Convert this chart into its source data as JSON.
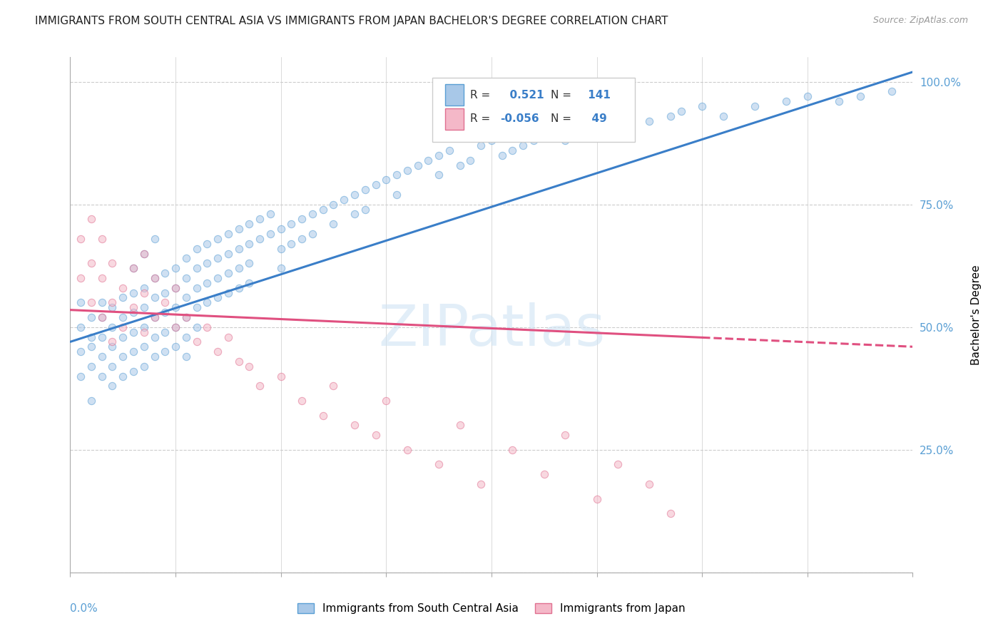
{
  "title": "IMMIGRANTS FROM SOUTH CENTRAL ASIA VS IMMIGRANTS FROM JAPAN BACHELOR'S DEGREE CORRELATION CHART",
  "source_text": "Source: ZipAtlas.com",
  "xmin": 0.0,
  "xmax": 0.8,
  "ymin": 0.0,
  "ymax": 1.05,
  "blue_color": "#a8c8e8",
  "blue_edge": "#5a9fd4",
  "pink_color": "#f4b8c8",
  "pink_edge": "#e07090",
  "trend_blue": "#3a7ec8",
  "trend_pink": "#e05080",
  "R_blue": 0.521,
  "N_blue": 141,
  "R_pink": -0.056,
  "N_pink": 49,
  "watermark": "ZIPatlas",
  "legend_label_blue": "Immigrants from South Central Asia",
  "legend_label_pink": "Immigrants from Japan",
  "blue_trend_x0": 0.0,
  "blue_trend_y0": 0.47,
  "blue_trend_x1": 0.8,
  "blue_trend_y1": 1.02,
  "pink_trend_x0": 0.0,
  "pink_trend_y0": 0.535,
  "pink_trend_x1": 0.8,
  "pink_trend_y1": 0.46,
  "background_color": "#ffffff",
  "grid_color": "#cccccc",
  "dot_size": 55,
  "dot_alpha": 0.55,
  "blue_scatter_x": [
    0.01,
    0.01,
    0.01,
    0.01,
    0.02,
    0.02,
    0.02,
    0.02,
    0.02,
    0.03,
    0.03,
    0.03,
    0.03,
    0.03,
    0.04,
    0.04,
    0.04,
    0.04,
    0.04,
    0.05,
    0.05,
    0.05,
    0.05,
    0.05,
    0.06,
    0.06,
    0.06,
    0.06,
    0.06,
    0.06,
    0.07,
    0.07,
    0.07,
    0.07,
    0.07,
    0.07,
    0.08,
    0.08,
    0.08,
    0.08,
    0.08,
    0.08,
    0.09,
    0.09,
    0.09,
    0.09,
    0.09,
    0.1,
    0.1,
    0.1,
    0.1,
    0.1,
    0.11,
    0.11,
    0.11,
    0.11,
    0.11,
    0.11,
    0.12,
    0.12,
    0.12,
    0.12,
    0.12,
    0.13,
    0.13,
    0.13,
    0.13,
    0.14,
    0.14,
    0.14,
    0.14,
    0.15,
    0.15,
    0.15,
    0.15,
    0.16,
    0.16,
    0.16,
    0.16,
    0.17,
    0.17,
    0.17,
    0.17,
    0.18,
    0.18,
    0.19,
    0.19,
    0.2,
    0.2,
    0.2,
    0.21,
    0.21,
    0.22,
    0.22,
    0.23,
    0.23,
    0.24,
    0.25,
    0.25,
    0.26,
    0.27,
    0.27,
    0.28,
    0.28,
    0.29,
    0.3,
    0.31,
    0.31,
    0.32,
    0.33,
    0.34,
    0.35,
    0.35,
    0.36,
    0.37,
    0.38,
    0.39,
    0.4,
    0.41,
    0.42,
    0.43,
    0.44,
    0.45,
    0.46,
    0.47,
    0.48,
    0.49,
    0.5,
    0.52,
    0.53,
    0.55,
    0.57,
    0.58,
    0.6,
    0.62,
    0.65,
    0.68,
    0.7,
    0.73,
    0.75,
    0.78
  ],
  "blue_scatter_y": [
    0.45,
    0.5,
    0.55,
    0.4,
    0.48,
    0.52,
    0.46,
    0.42,
    0.35,
    0.52,
    0.48,
    0.55,
    0.44,
    0.4,
    0.5,
    0.54,
    0.46,
    0.42,
    0.38,
    0.52,
    0.56,
    0.48,
    0.44,
    0.4,
    0.53,
    0.57,
    0.49,
    0.45,
    0.41,
    0.62,
    0.54,
    0.58,
    0.5,
    0.46,
    0.42,
    0.65,
    0.56,
    0.6,
    0.52,
    0.48,
    0.44,
    0.68,
    0.57,
    0.61,
    0.53,
    0.49,
    0.45,
    0.58,
    0.62,
    0.54,
    0.5,
    0.46,
    0.6,
    0.64,
    0.56,
    0.52,
    0.48,
    0.44,
    0.62,
    0.66,
    0.58,
    0.54,
    0.5,
    0.63,
    0.67,
    0.59,
    0.55,
    0.64,
    0.68,
    0.6,
    0.56,
    0.65,
    0.69,
    0.61,
    0.57,
    0.66,
    0.7,
    0.62,
    0.58,
    0.67,
    0.71,
    0.63,
    0.59,
    0.68,
    0.72,
    0.69,
    0.73,
    0.7,
    0.66,
    0.62,
    0.71,
    0.67,
    0.72,
    0.68,
    0.73,
    0.69,
    0.74,
    0.75,
    0.71,
    0.76,
    0.77,
    0.73,
    0.78,
    0.74,
    0.79,
    0.8,
    0.81,
    0.77,
    0.82,
    0.83,
    0.84,
    0.85,
    0.81,
    0.86,
    0.83,
    0.84,
    0.87,
    0.88,
    0.85,
    0.86,
    0.87,
    0.88,
    0.89,
    0.9,
    0.88,
    0.89,
    0.9,
    0.91,
    0.92,
    0.9,
    0.92,
    0.93,
    0.94,
    0.95,
    0.93,
    0.95,
    0.96,
    0.97,
    0.96,
    0.97,
    0.98
  ],
  "pink_scatter_x": [
    0.01,
    0.01,
    0.02,
    0.02,
    0.02,
    0.03,
    0.03,
    0.03,
    0.04,
    0.04,
    0.04,
    0.05,
    0.05,
    0.06,
    0.06,
    0.07,
    0.07,
    0.07,
    0.08,
    0.08,
    0.09,
    0.1,
    0.1,
    0.11,
    0.12,
    0.13,
    0.14,
    0.15,
    0.16,
    0.17,
    0.18,
    0.2,
    0.22,
    0.24,
    0.25,
    0.27,
    0.29,
    0.3,
    0.32,
    0.35,
    0.37,
    0.39,
    0.42,
    0.45,
    0.47,
    0.5,
    0.52,
    0.55,
    0.57
  ],
  "pink_scatter_y": [
    0.68,
    0.6,
    0.72,
    0.63,
    0.55,
    0.68,
    0.6,
    0.52,
    0.63,
    0.55,
    0.47,
    0.58,
    0.5,
    0.62,
    0.54,
    0.65,
    0.57,
    0.49,
    0.6,
    0.52,
    0.55,
    0.58,
    0.5,
    0.52,
    0.47,
    0.5,
    0.45,
    0.48,
    0.43,
    0.42,
    0.38,
    0.4,
    0.35,
    0.32,
    0.38,
    0.3,
    0.28,
    0.35,
    0.25,
    0.22,
    0.3,
    0.18,
    0.25,
    0.2,
    0.28,
    0.15,
    0.22,
    0.18,
    0.12
  ]
}
